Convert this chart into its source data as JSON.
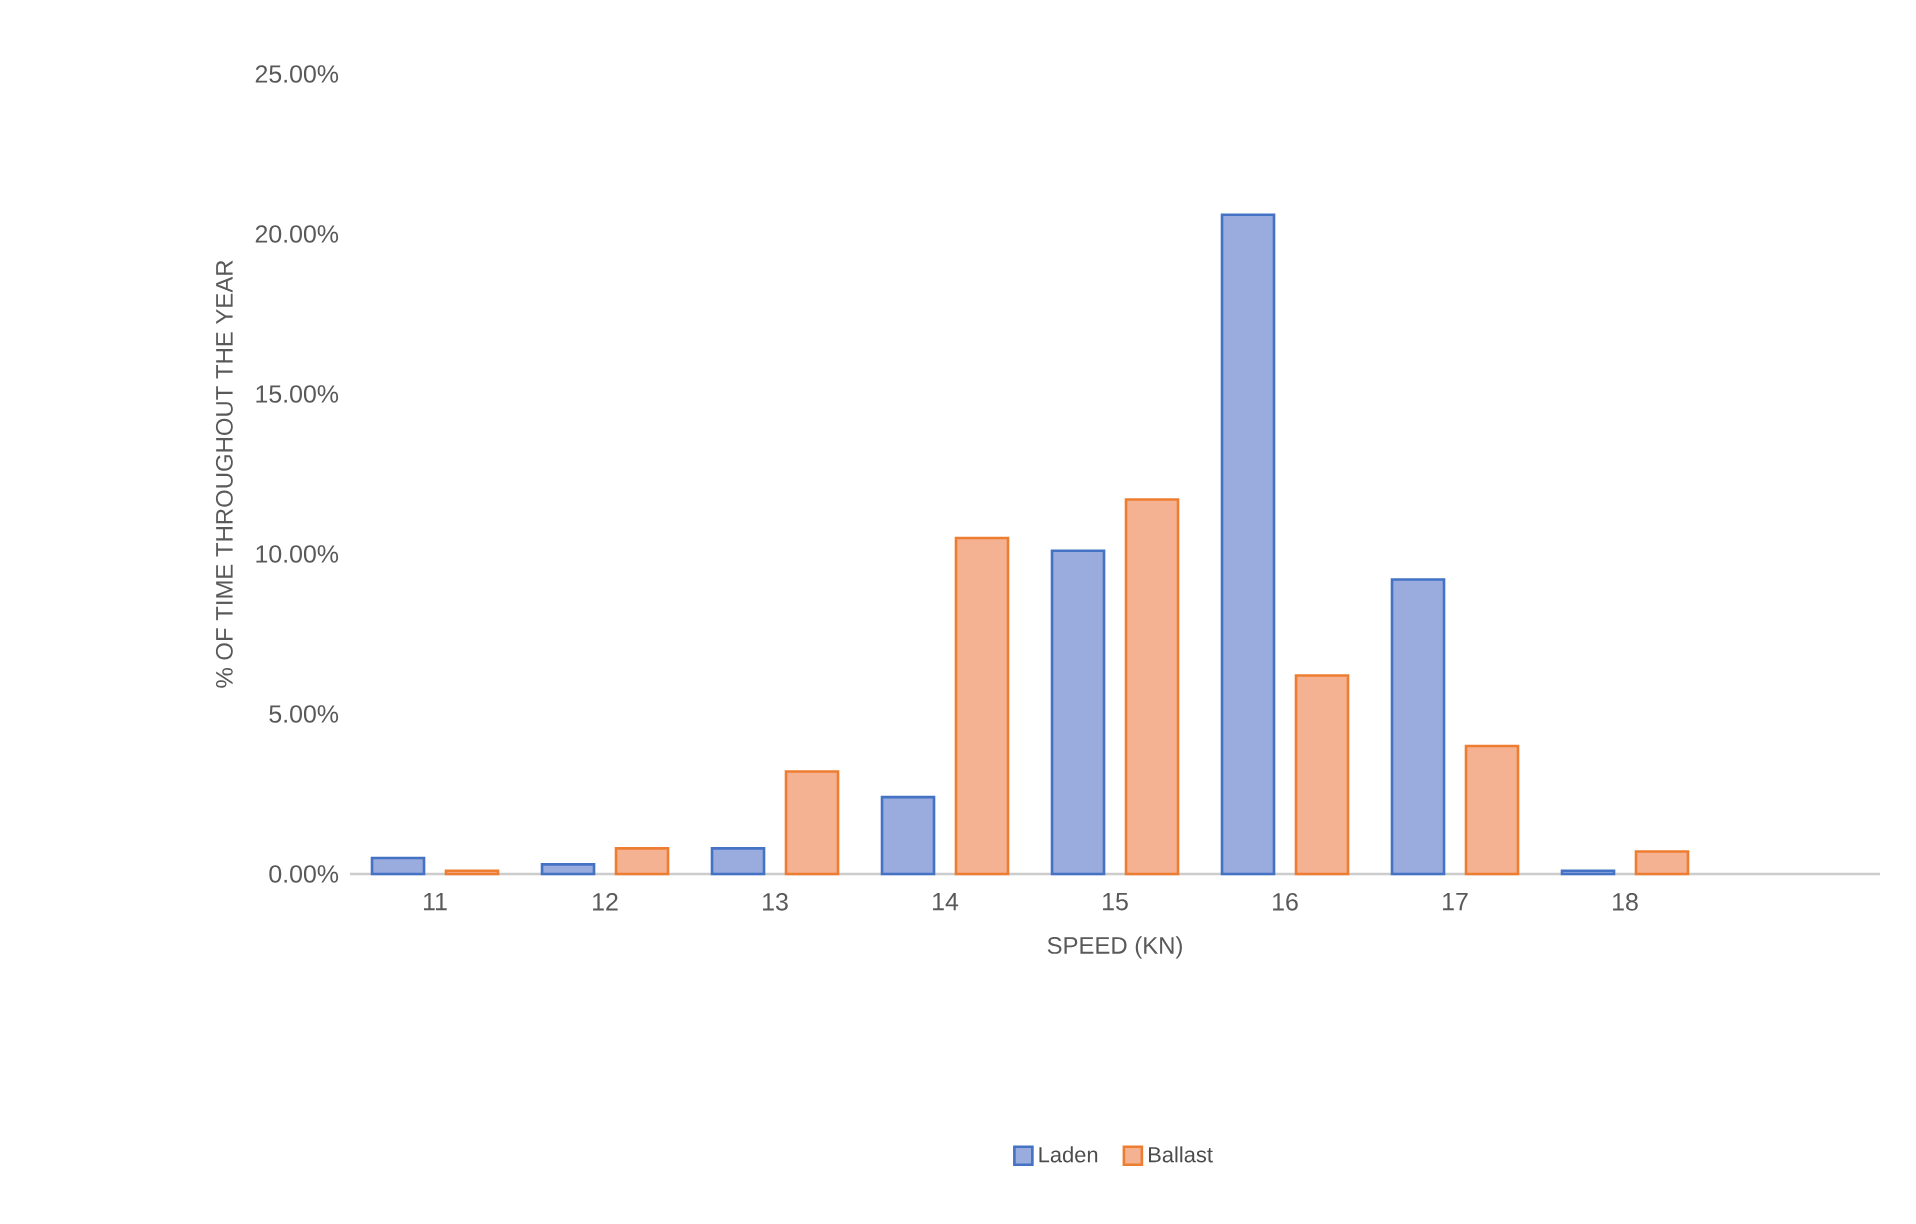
{
  "chart_data": {
    "type": "bar",
    "xlabel": "SPEED (KN)",
    "ylabel": "% OF TIME THROUGHOUT THE YEAR",
    "categories": [
      "11",
      "12",
      "13",
      "14",
      "15",
      "16",
      "17",
      "18",
      null
    ],
    "series": [
      {
        "name": "Laden",
        "color": "#9aacdd",
        "values": [
          0.5,
          0.3,
          0.8,
          2.4,
          10.1,
          20.6,
          9.2,
          0.1,
          null
        ]
      },
      {
        "name": "Ballast",
        "color": "#f5b293",
        "values": [
          0.1,
          0.8,
          3.2,
          10.5,
          11.7,
          6.2,
          4.0,
          0.7,
          null
        ]
      }
    ],
    "ylim": [
      0,
      25
    ],
    "yticks": [
      {
        "value": 0,
        "label": "0.00%"
      },
      {
        "value": 5,
        "label": "5.00%"
      },
      {
        "value": 10,
        "label": "10.00%"
      },
      {
        "value": 15,
        "label": "15.00%"
      },
      {
        "value": 20,
        "label": "20.00%"
      },
      {
        "value": 25,
        "label": "25.00%"
      }
    ],
    "grid": false,
    "legend": "bottom"
  }
}
